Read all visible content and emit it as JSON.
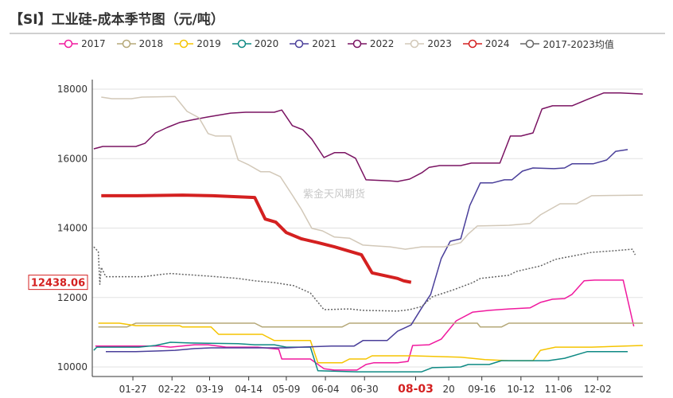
{
  "title": "【SI】工业硅-成本季节图（元/吨）",
  "chart_data": {
    "type": "line",
    "x_axis": "day of year",
    "xlim": [
      0,
      366
    ],
    "ylim": [
      9725,
      18000
    ],
    "y_ticks": [
      10000,
      12000,
      14000,
      16000,
      18000
    ],
    "x_ticks": [
      {
        "day": 27,
        "label": "01-27"
      },
      {
        "day": 53,
        "label": "02-22"
      },
      {
        "day": 78,
        "label": "03-19"
      },
      {
        "day": 104,
        "label": "04-14"
      },
      {
        "day": 129,
        "label": "05-09"
      },
      {
        "day": 155,
        "label": "06-04"
      },
      {
        "day": 181,
        "label": "06-30"
      },
      {
        "day": 215,
        "label": "08-03",
        "highlight": true
      },
      {
        "day": 237,
        "label": "20"
      },
      {
        "day": 259,
        "label": "09-16"
      },
      {
        "day": 285,
        "label": "10-12"
      },
      {
        "day": 310,
        "label": "11-06"
      },
      {
        "day": 336,
        "label": "12-02"
      }
    ],
    "grid": "horizontal",
    "legend_position": "top",
    "current_value_label": "12438.06",
    "watermark": "紫金天风期货",
    "series": [
      {
        "name": "2017",
        "color": "#f0199e",
        "width": 1.5,
        "points": [
          [
            2,
            10600
          ],
          [
            44,
            10600
          ],
          [
            52,
            10570
          ],
          [
            68,
            10640
          ],
          [
            77,
            10640
          ],
          [
            89,
            10570
          ],
          [
            110,
            10570
          ],
          [
            124,
            10510
          ],
          [
            126,
            10230
          ],
          [
            145,
            10230
          ],
          [
            154,
            9950
          ],
          [
            161,
            9910
          ],
          [
            176,
            9910
          ],
          [
            182,
            10070
          ],
          [
            187,
            10120
          ],
          [
            203,
            10120
          ],
          [
            210,
            10160
          ],
          [
            213,
            10620
          ],
          [
            224,
            10640
          ],
          [
            232,
            10800
          ],
          [
            242,
            11330
          ],
          [
            253,
            11580
          ],
          [
            264,
            11630
          ],
          [
            277,
            11670
          ],
          [
            291,
            11700
          ],
          [
            298,
            11860
          ],
          [
            306,
            11950
          ],
          [
            314,
            11970
          ],
          [
            319,
            12090
          ],
          [
            327,
            12480
          ],
          [
            334,
            12500
          ],
          [
            353,
            12500
          ],
          [
            360,
            11170
          ]
        ]
      },
      {
        "name": "2018",
        "color": "#b5a878",
        "width": 1.5,
        "points": [
          [
            4,
            11150
          ],
          [
            23,
            11150
          ],
          [
            29,
            11260
          ],
          [
            108,
            11260
          ],
          [
            113,
            11150
          ],
          [
            166,
            11150
          ],
          [
            171,
            11260
          ],
          [
            256,
            11260
          ],
          [
            258,
            11150
          ],
          [
            272,
            11150
          ],
          [
            277,
            11260
          ],
          [
            366,
            11260
          ]
        ]
      },
      {
        "name": "2019",
        "color": "#f5c400",
        "width": 1.5,
        "points": [
          [
            4,
            11260
          ],
          [
            18,
            11260
          ],
          [
            29,
            11190
          ],
          [
            58,
            11190
          ],
          [
            60,
            11150
          ],
          [
            79,
            11150
          ],
          [
            84,
            10940
          ],
          [
            113,
            10940
          ],
          [
            121,
            10760
          ],
          [
            145,
            10760
          ],
          [
            150,
            10120
          ],
          [
            166,
            10120
          ],
          [
            171,
            10230
          ],
          [
            182,
            10230
          ],
          [
            186,
            10320
          ],
          [
            213,
            10320
          ],
          [
            245,
            10280
          ],
          [
            261,
            10210
          ],
          [
            277,
            10180
          ],
          [
            293,
            10180
          ],
          [
            298,
            10480
          ],
          [
            308,
            10570
          ],
          [
            324,
            10570
          ],
          [
            332,
            10570
          ],
          [
            366,
            10620
          ]
        ]
      },
      {
        "name": "2020",
        "color": "#0f8a84",
        "width": 1.5,
        "points": [
          [
            1,
            10480
          ],
          [
            3,
            10570
          ],
          [
            31,
            10570
          ],
          [
            42,
            10620
          ],
          [
            52,
            10710
          ],
          [
            65,
            10690
          ],
          [
            97,
            10670
          ],
          [
            108,
            10640
          ],
          [
            121,
            10640
          ],
          [
            129,
            10570
          ],
          [
            145,
            10570
          ],
          [
            150,
            9890
          ],
          [
            176,
            9860
          ],
          [
            203,
            9860
          ],
          [
            219,
            9860
          ],
          [
            226,
            9980
          ],
          [
            245,
            10000
          ],
          [
            250,
            10070
          ],
          [
            264,
            10070
          ],
          [
            272,
            10180
          ],
          [
            287,
            10180
          ],
          [
            303,
            10180
          ],
          [
            314,
            10250
          ],
          [
            329,
            10440
          ],
          [
            356,
            10440
          ]
        ]
      },
      {
        "name": "2021",
        "color": "#4a3f9a",
        "width": 1.5,
        "points": [
          [
            9,
            10440
          ],
          [
            29,
            10440
          ],
          [
            44,
            10460
          ],
          [
            55,
            10480
          ],
          [
            68,
            10530
          ],
          [
            79,
            10550
          ],
          [
            102,
            10550
          ],
          [
            129,
            10550
          ],
          [
            139,
            10570
          ],
          [
            159,
            10600
          ],
          [
            174,
            10600
          ],
          [
            180,
            10760
          ],
          [
            187,
            10760
          ],
          [
            196,
            10760
          ],
          [
            203,
            11030
          ],
          [
            212,
            11210
          ],
          [
            219,
            11700
          ],
          [
            225,
            12090
          ],
          [
            232,
            13120
          ],
          [
            238,
            13620
          ],
          [
            245,
            13690
          ],
          [
            251,
            14650
          ],
          [
            258,
            15300
          ],
          [
            266,
            15300
          ],
          [
            274,
            15390
          ],
          [
            279,
            15390
          ],
          [
            286,
            15640
          ],
          [
            293,
            15730
          ],
          [
            307,
            15710
          ],
          [
            314,
            15730
          ],
          [
            319,
            15850
          ],
          [
            333,
            15850
          ],
          [
            342,
            15960
          ],
          [
            348,
            16210
          ],
          [
            356,
            16260
          ]
        ]
      },
      {
        "name": "2022",
        "color": "#7a1362",
        "width": 1.5,
        "points": [
          [
            1,
            16280
          ],
          [
            7,
            16350
          ],
          [
            29,
            16350
          ],
          [
            35,
            16440
          ],
          [
            42,
            16740
          ],
          [
            50,
            16900
          ],
          [
            58,
            17040
          ],
          [
            68,
            17130
          ],
          [
            77,
            17200
          ],
          [
            92,
            17310
          ],
          [
            102,
            17335
          ],
          [
            121,
            17335
          ],
          [
            126,
            17400
          ],
          [
            133,
            16950
          ],
          [
            140,
            16830
          ],
          [
            146,
            16560
          ],
          [
            154,
            16030
          ],
          [
            161,
            16170
          ],
          [
            168,
            16170
          ],
          [
            175,
            16010
          ],
          [
            182,
            15390
          ],
          [
            198,
            15360
          ],
          [
            203,
            15340
          ],
          [
            211,
            15410
          ],
          [
            219,
            15590
          ],
          [
            224,
            15750
          ],
          [
            231,
            15800
          ],
          [
            245,
            15800
          ],
          [
            252,
            15870
          ],
          [
            271,
            15870
          ],
          [
            278,
            16650
          ],
          [
            285,
            16650
          ],
          [
            293,
            16740
          ],
          [
            299,
            17430
          ],
          [
            306,
            17520
          ],
          [
            319,
            17520
          ],
          [
            329,
            17700
          ],
          [
            340,
            17890
          ],
          [
            351,
            17890
          ],
          [
            366,
            17860
          ]
        ]
      },
      {
        "name": "2023",
        "color": "#d2c8b8",
        "width": 1.5,
        "points": [
          [
            6,
            17770
          ],
          [
            13,
            17725
          ],
          [
            26,
            17725
          ],
          [
            33,
            17770
          ],
          [
            55,
            17790
          ],
          [
            63,
            17360
          ],
          [
            71,
            17175
          ],
          [
            77,
            16720
          ],
          [
            82,
            16650
          ],
          [
            92,
            16650
          ],
          [
            97,
            15960
          ],
          [
            104,
            15820
          ],
          [
            112,
            15620
          ],
          [
            118,
            15620
          ],
          [
            125,
            15480
          ],
          [
            133,
            14950
          ],
          [
            139,
            14540
          ],
          [
            146,
            13990
          ],
          [
            153,
            13920
          ],
          [
            161,
            13740
          ],
          [
            171,
            13710
          ],
          [
            180,
            13510
          ],
          [
            198,
            13460
          ],
          [
            208,
            13390
          ],
          [
            219,
            13460
          ],
          [
            234,
            13460
          ],
          [
            245,
            13580
          ],
          [
            250,
            13830
          ],
          [
            256,
            14060
          ],
          [
            277,
            14080
          ],
          [
            291,
            14130
          ],
          [
            298,
            14380
          ],
          [
            311,
            14700
          ],
          [
            322,
            14700
          ],
          [
            332,
            14930
          ],
          [
            366,
            14950
          ]
        ]
      },
      {
        "name": "2024",
        "color": "#d42020",
        "width": 4,
        "points": [
          [
            6,
            14930
          ],
          [
            30,
            14930
          ],
          [
            60,
            14950
          ],
          [
            80,
            14930
          ],
          [
            108,
            14880
          ],
          [
            115,
            14260
          ],
          [
            122,
            14170
          ],
          [
            129,
            13870
          ],
          [
            139,
            13690
          ],
          [
            150,
            13580
          ],
          [
            161,
            13460
          ],
          [
            179,
            13230
          ],
          [
            186,
            12710
          ],
          [
            203,
            12550
          ],
          [
            207,
            12480
          ],
          [
            212,
            12438
          ]
        ]
      },
      {
        "name": "2017-2023均值",
        "color": "#666666",
        "width": 1.5,
        "dash": "2,2",
        "points": [
          [
            1,
            13460
          ],
          [
            4,
            13320
          ],
          [
            5,
            12380
          ],
          [
            6,
            12870
          ],
          [
            9,
            12600
          ],
          [
            34,
            12600
          ],
          [
            47,
            12670
          ],
          [
            52,
            12690
          ],
          [
            76,
            12620
          ],
          [
            97,
            12550
          ],
          [
            108,
            12480
          ],
          [
            121,
            12430
          ],
          [
            134,
            12340
          ],
          [
            145,
            12130
          ],
          [
            154,
            11650
          ],
          [
            171,
            11670
          ],
          [
            180,
            11630
          ],
          [
            203,
            11610
          ],
          [
            211,
            11650
          ],
          [
            219,
            11740
          ],
          [
            226,
            12020
          ],
          [
            240,
            12220
          ],
          [
            253,
            12430
          ],
          [
            258,
            12550
          ],
          [
            277,
            12640
          ],
          [
            282,
            12750
          ],
          [
            298,
            12910
          ],
          [
            308,
            13100
          ],
          [
            319,
            13190
          ],
          [
            332,
            13300
          ],
          [
            345,
            13340
          ],
          [
            359,
            13390
          ],
          [
            361,
            13230
          ]
        ]
      }
    ]
  }
}
